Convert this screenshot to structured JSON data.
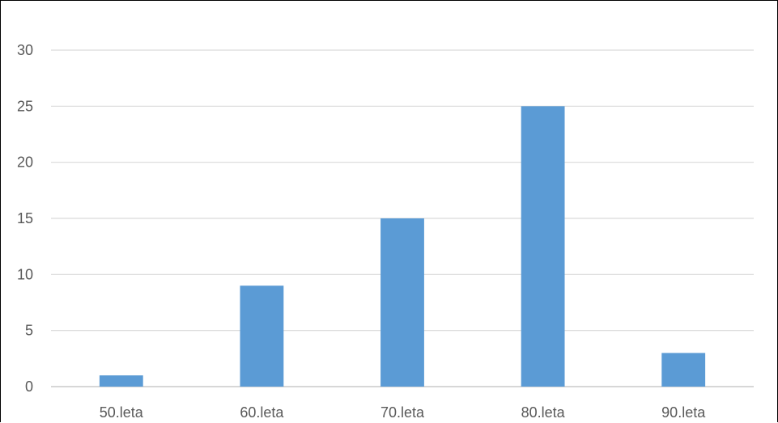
{
  "chart_data": {
    "type": "bar",
    "categories": [
      "50.leta",
      "60.leta",
      "70.leta",
      "80.leta",
      "90.leta"
    ],
    "values": [
      1,
      9,
      15,
      25,
      3
    ],
    "ylim": [
      0,
      30
    ],
    "yticks": [
      0,
      5,
      10,
      15,
      20,
      25,
      30
    ],
    "grid": true,
    "colors": {
      "bar": "#5b9bd5",
      "grid": "#d9d9d9",
      "text": "#595959"
    }
  }
}
